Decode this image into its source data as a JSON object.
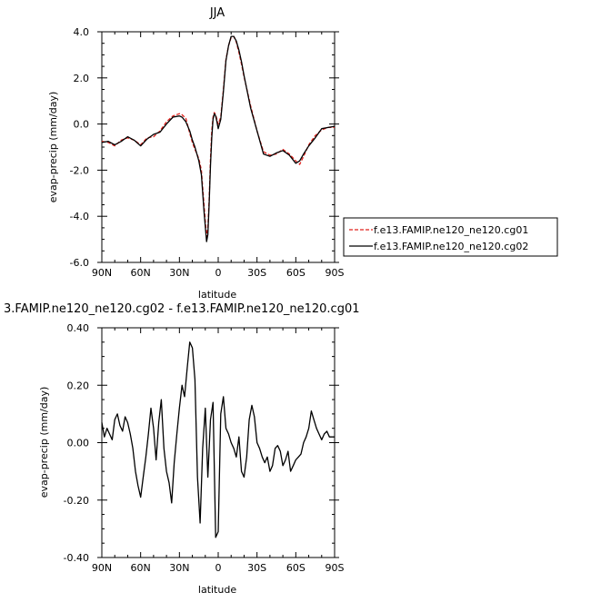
{
  "chart_data": [
    {
      "type": "line",
      "title": "JJA",
      "xlabel": "latitude",
      "ylabel": "evap-precip (mm/day)",
      "xlim": [
        90,
        -90
      ],
      "ylim": [
        -6.0,
        4.0
      ],
      "xticks": [
        {
          "value": 90,
          "label": "90N"
        },
        {
          "value": 60,
          "label": "60N"
        },
        {
          "value": 30,
          "label": "30N"
        },
        {
          "value": 0,
          "label": "0"
        },
        {
          "value": -30,
          "label": "30S"
        },
        {
          "value": -60,
          "label": "60S"
        },
        {
          "value": -90,
          "label": "90S"
        }
      ],
      "yticks": [
        {
          "value": 4.0,
          "label": "4.0"
        },
        {
          "value": 2.0,
          "label": "2.0"
        },
        {
          "value": 0.0,
          "label": "0.0"
        },
        {
          "value": -2.0,
          "label": "-2.0"
        },
        {
          "value": -4.0,
          "label": "-4.0"
        },
        {
          "value": -6.0,
          "label": "-6.0"
        }
      ],
      "grid": false,
      "legend": "right",
      "series": [
        {
          "name": "f.e13.FAMIP.ne120_ne120.cg01",
          "color": "#e0201b",
          "dash": "dashed",
          "x": [
            90,
            85,
            80,
            75,
            70,
            65,
            60,
            55,
            50,
            45,
            40,
            35,
            30,
            28,
            25,
            22,
            20,
            18,
            15,
            13,
            11,
            9,
            8,
            7,
            6,
            5,
            4,
            3,
            2,
            1,
            0,
            -2,
            -4,
            -6,
            -8,
            -10,
            -12,
            -14,
            -16,
            -18,
            -20,
            -25,
            -30,
            -35,
            -40,
            -45,
            -50,
            -55,
            -60,
            -63,
            -66,
            -70,
            -75,
            -80,
            -85,
            -90
          ],
          "y": [
            -0.75,
            -0.8,
            -0.95,
            -0.7,
            -0.6,
            -0.7,
            -0.9,
            -0.6,
            -0.55,
            -0.3,
            0.1,
            0.35,
            0.45,
            0.4,
            0.25,
            -0.4,
            -0.8,
            -1.1,
            -1.5,
            -2.0,
            -3.5,
            -4.9,
            -4.5,
            -3.3,
            -1.5,
            -0.3,
            0.3,
            0.5,
            0.4,
            0.2,
            0.0,
            0.3,
            1.5,
            2.8,
            3.4,
            3.75,
            3.8,
            3.55,
            3.1,
            2.6,
            2.05,
            0.8,
            -0.3,
            -1.2,
            -1.35,
            -1.3,
            -1.1,
            -1.3,
            -1.6,
            -1.75,
            -1.4,
            -0.9,
            -0.5,
            -0.25,
            -0.15,
            -0.15
          ]
        },
        {
          "name": "f.e13.FAMIP.ne120_ne120.cg02",
          "color": "#000000",
          "dash": "solid",
          "x": [
            90,
            85,
            80,
            75,
            70,
            65,
            60,
            55,
            50,
            45,
            40,
            35,
            30,
            28,
            25,
            22,
            20,
            18,
            15,
            13,
            11,
            9,
            8,
            7,
            6,
            5,
            4,
            3,
            2,
            1,
            0,
            -2,
            -4,
            -6,
            -8,
            -10,
            -12,
            -14,
            -16,
            -18,
            -20,
            -25,
            -30,
            -35,
            -40,
            -45,
            -50,
            -55,
            -60,
            -63,
            -66,
            -70,
            -75,
            -80,
            -85,
            -90
          ],
          "y": [
            -0.8,
            -0.75,
            -0.9,
            -0.75,
            -0.55,
            -0.7,
            -0.95,
            -0.65,
            -0.45,
            -0.35,
            0.0,
            0.3,
            0.35,
            0.3,
            0.1,
            -0.3,
            -0.7,
            -1.0,
            -1.6,
            -2.2,
            -3.8,
            -5.1,
            -4.8,
            -3.5,
            -1.8,
            -0.6,
            0.2,
            0.45,
            0.35,
            0.1,
            -0.2,
            0.2,
            1.4,
            2.75,
            3.4,
            3.8,
            3.8,
            3.6,
            3.2,
            2.7,
            2.1,
            0.7,
            -0.3,
            -1.3,
            -1.4,
            -1.25,
            -1.15,
            -1.35,
            -1.7,
            -1.6,
            -1.3,
            -0.95,
            -0.6,
            -0.2,
            -0.15,
            -0.1
          ]
        }
      ]
    },
    {
      "type": "line",
      "title": "3.FAMIP.ne120_ne120.cg02 - f.e13.FAMIP.ne120_ne120.cg01",
      "xlabel": "latitude",
      "ylabel": "evap-precip (mm/day)",
      "xlim": [
        90,
        -90
      ],
      "ylim": [
        -0.4,
        0.4
      ],
      "xticks": [
        {
          "value": 90,
          "label": "90N"
        },
        {
          "value": 60,
          "label": "60N"
        },
        {
          "value": 30,
          "label": "30N"
        },
        {
          "value": 0,
          "label": "0"
        },
        {
          "value": -30,
          "label": "30S"
        },
        {
          "value": -60,
          "label": "60S"
        },
        {
          "value": -90,
          "label": "90S"
        }
      ],
      "yticks": [
        {
          "value": 0.4,
          "label": "0.40"
        },
        {
          "value": 0.2,
          "label": "0.20"
        },
        {
          "value": 0.0,
          "label": "0.00"
        },
        {
          "value": -0.2,
          "label": "-0.20"
        },
        {
          "value": -0.4,
          "label": "-0.40"
        }
      ],
      "grid": false,
      "series": [
        {
          "color": "#000000",
          "dash": "solid",
          "x": [
            90,
            88,
            86,
            84,
            82,
            80,
            78,
            76,
            74,
            72,
            70,
            68,
            66,
            64,
            62,
            60,
            58,
            56,
            54,
            52,
            50,
            48,
            46,
            44,
            42,
            40,
            38,
            36,
            34,
            32,
            30,
            28,
            26,
            24,
            22,
            20,
            18,
            16,
            14,
            12,
            10,
            8,
            6,
            4,
            2,
            0,
            -2,
            -4,
            -6,
            -8,
            -10,
            -12,
            -14,
            -16,
            -18,
            -20,
            -22,
            -24,
            -26,
            -28,
            -30,
            -32,
            -34,
            -36,
            -38,
            -40,
            -42,
            -44,
            -46,
            -48,
            -50,
            -52,
            -54,
            -56,
            -58,
            -60,
            -62,
            -64,
            -66,
            -68,
            -70,
            -72,
            -74,
            -76,
            -78,
            -80,
            -82,
            -84,
            -86,
            -88,
            -90
          ],
          "y": [
            0.07,
            0.02,
            0.05,
            0.03,
            0.01,
            0.08,
            0.1,
            0.06,
            0.04,
            0.09,
            0.07,
            0.03,
            -0.02,
            -0.1,
            -0.15,
            -0.19,
            -0.12,
            -0.05,
            0.03,
            0.12,
            0.05,
            -0.06,
            0.07,
            0.15,
            -0.02,
            -0.1,
            -0.14,
            -0.21,
            -0.07,
            0.03,
            0.12,
            0.2,
            0.16,
            0.26,
            0.35,
            0.33,
            0.22,
            -0.12,
            -0.28,
            -0.02,
            0.12,
            -0.12,
            0.08,
            0.14,
            -0.33,
            -0.31,
            0.1,
            0.16,
            0.05,
            0.03,
            0.0,
            -0.02,
            -0.05,
            0.02,
            -0.1,
            -0.12,
            -0.05,
            0.08,
            0.13,
            0.09,
            0.0,
            -0.02,
            -0.05,
            -0.07,
            -0.05,
            -0.1,
            -0.08,
            -0.02,
            -0.01,
            -0.03,
            -0.08,
            -0.06,
            -0.03,
            -0.1,
            -0.08,
            -0.06,
            -0.05,
            -0.04,
            0.0,
            0.02,
            0.05,
            0.11,
            0.08,
            0.05,
            0.03,
            0.01,
            0.03,
            0.04,
            0.02,
            0.02,
            0.02
          ]
        }
      ]
    }
  ]
}
